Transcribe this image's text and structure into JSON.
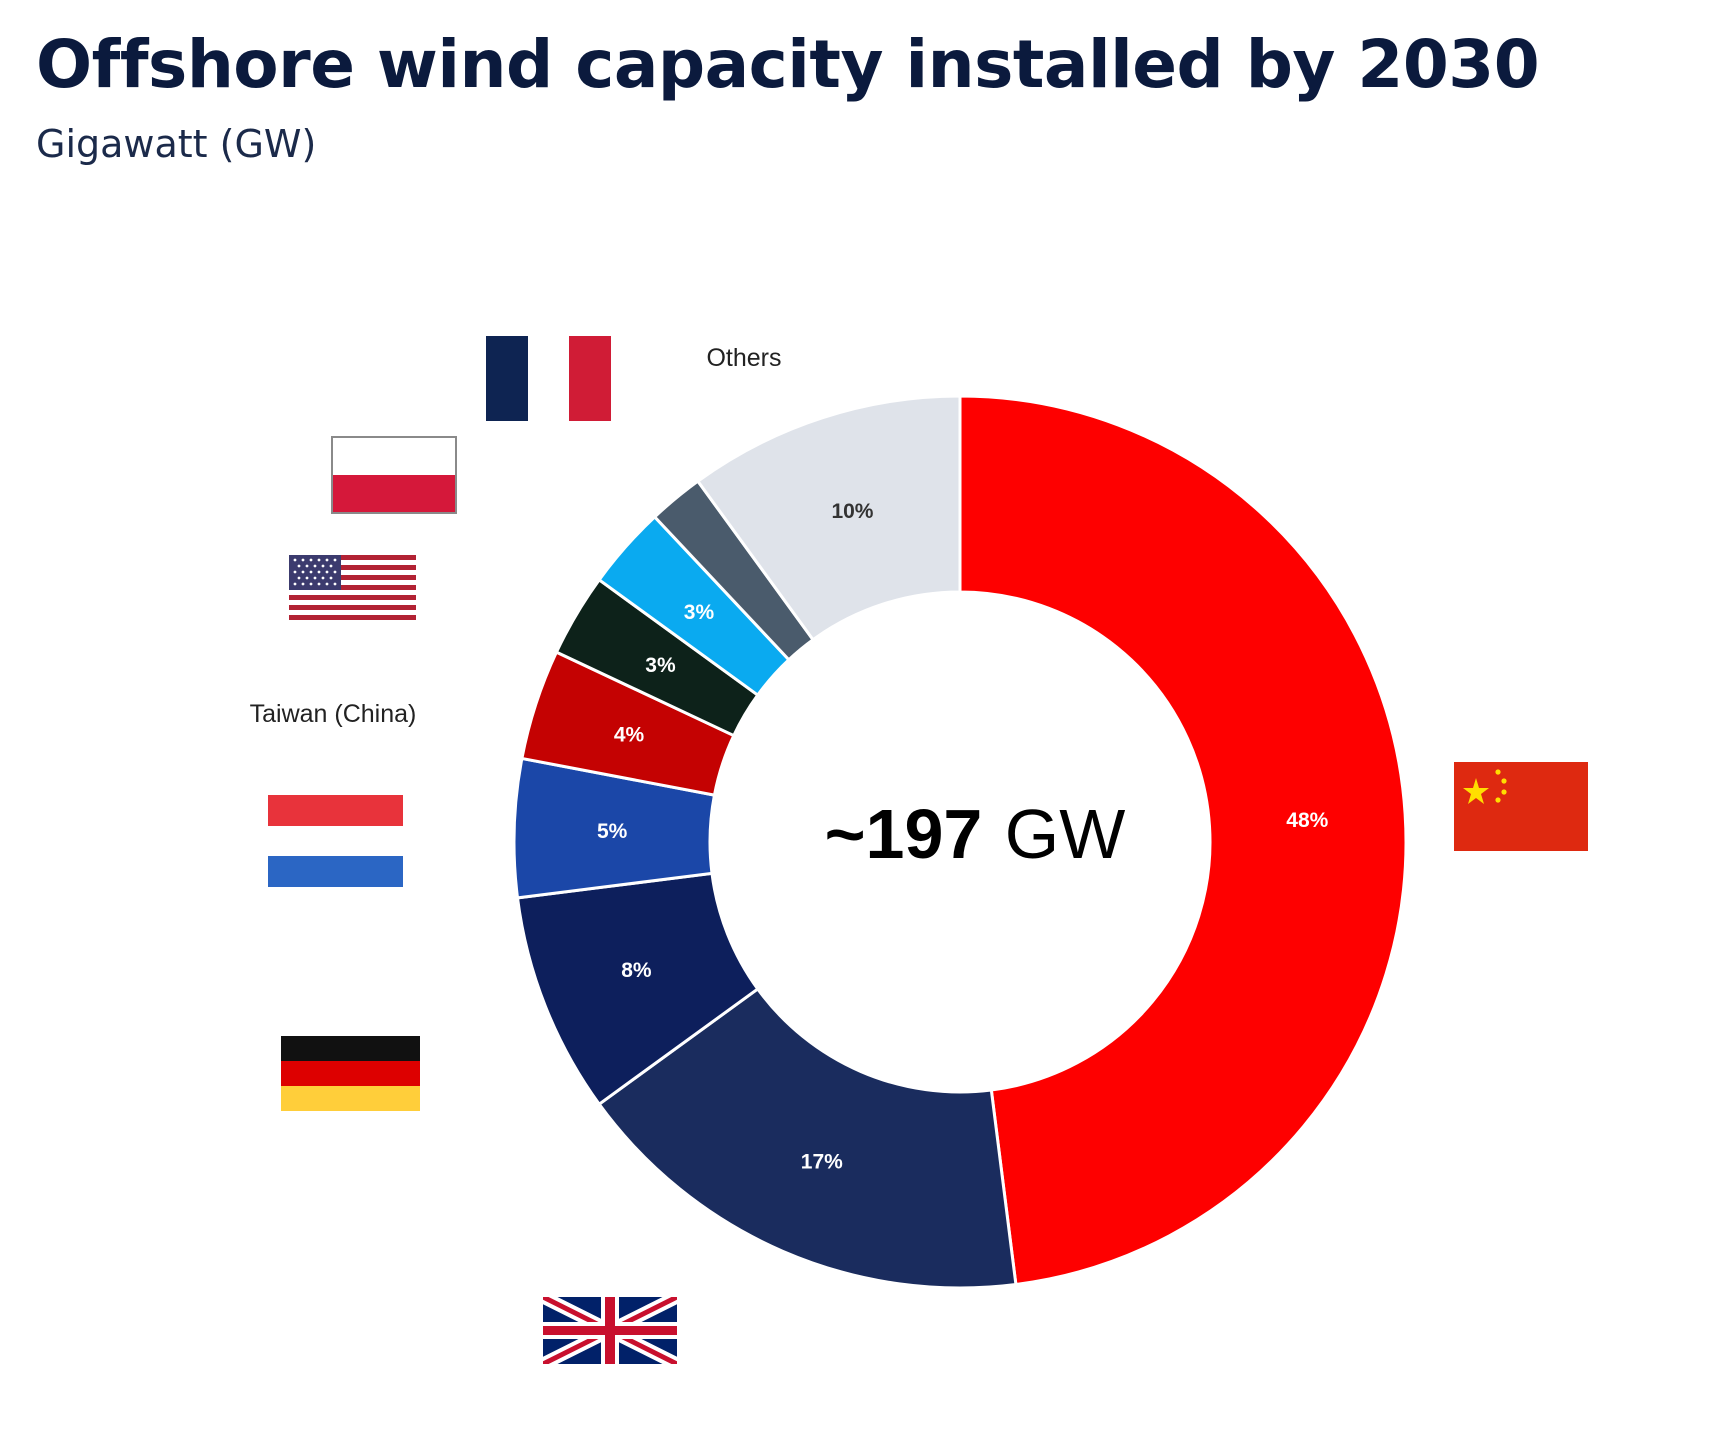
{
  "title": "Offshore wind capacity installed by 2030",
  "subtitle": "Gigawatt (GW)",
  "center": {
    "value": "~197",
    "unit": "GW"
  },
  "colors": {
    "china": "#fe0000",
    "uk": "#1a2c5e",
    "germany": "#0d1f5c",
    "netherlands": "#1b47a8",
    "taiwan": "#c40202",
    "usa": "#0d221a",
    "poland": "#0aaaf0",
    "france": "#4a5b6c",
    "others": "#dfe3ea"
  },
  "chart_data": {
    "type": "pie",
    "title": "Offshore wind capacity installed by 2030",
    "subtitle": "Gigawatt (GW)",
    "total": "~197 GW",
    "slices": [
      {
        "key": "china",
        "icon": "china-flag-icon",
        "value": 48,
        "label": "48%",
        "color": "#fe0000",
        "label_color": "#ffffff"
      },
      {
        "key": "uk",
        "icon": "uk-flag-icon",
        "value": 17,
        "label": "17%",
        "color": "#1a2c5e",
        "label_color": "#ffffff"
      },
      {
        "key": "germany",
        "icon": "germany-flag-icon",
        "value": 8,
        "label": "8%",
        "color": "#0d1f5c",
        "label_color": "#ffffff"
      },
      {
        "key": "netherlands",
        "icon": "netherlands-flag-icon",
        "value": 5,
        "label": "5%",
        "color": "#1b47a8",
        "label_color": "#ffffff"
      },
      {
        "key": "taiwan",
        "name": "Taiwan (China)",
        "value": 4,
        "label": "4%",
        "color": "#c40202",
        "label_color": "#ffffff"
      },
      {
        "key": "usa",
        "icon": "usa-flag-icon",
        "value": 3,
        "label": "3%",
        "color": "#0d221a",
        "label_color": "#ffffff"
      },
      {
        "key": "poland",
        "icon": "poland-flag-icon",
        "value": 3,
        "label": "3%",
        "color": "#0aaaf0",
        "label_color": "#ffffff"
      },
      {
        "key": "france",
        "icon": "france-flag-icon",
        "value": 2,
        "label": "",
        "color": "#4a5b6c",
        "label_color": "#ffffff"
      },
      {
        "key": "others",
        "name": "Others",
        "value": 10,
        "label": "10%",
        "color": "#dfe3ea",
        "label_color": "#333333"
      }
    ]
  }
}
